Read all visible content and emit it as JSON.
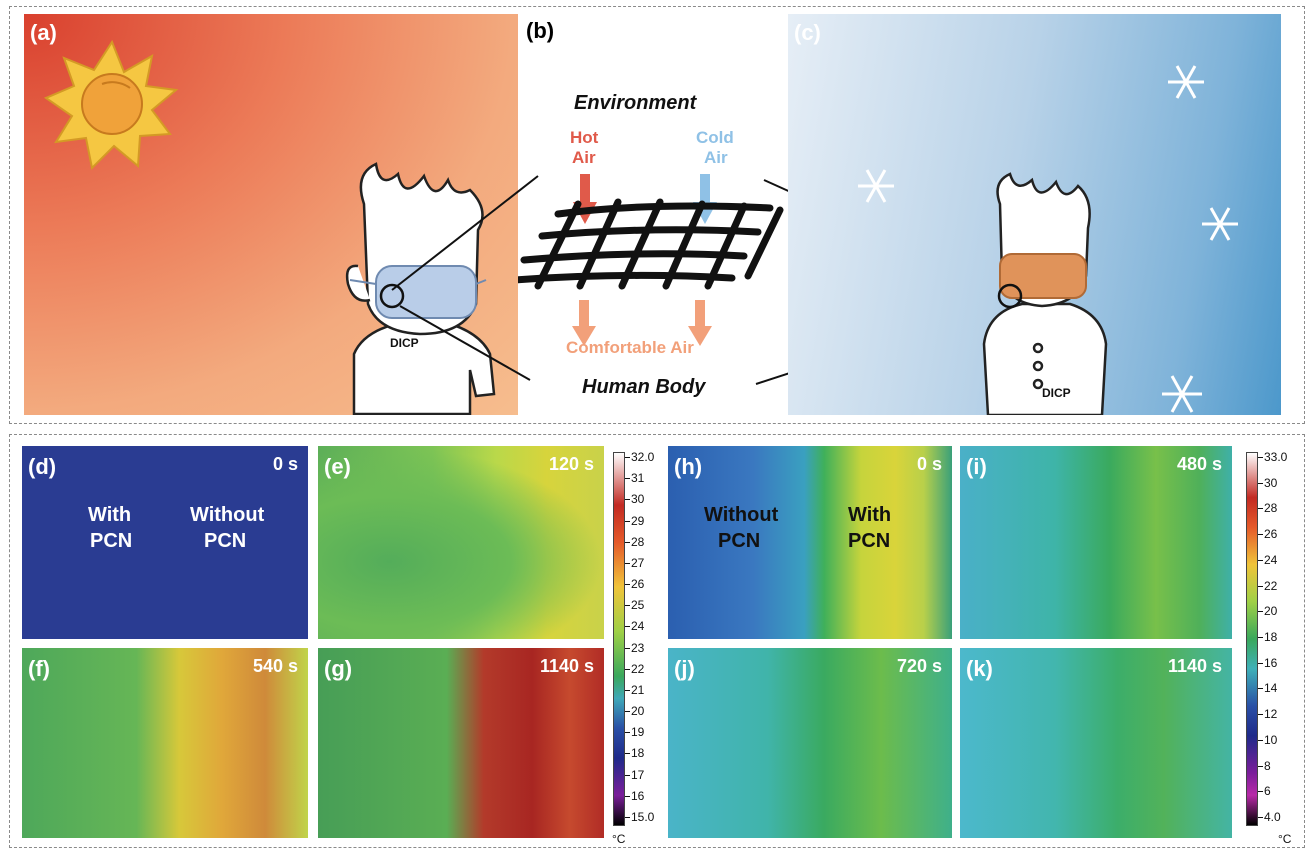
{
  "top": {
    "a": {
      "label": "(a)"
    },
    "b": {
      "label": "(b)",
      "environment": "Environment",
      "hot_air": [
        "Hot",
        "Air"
      ],
      "cold_air": [
        "Cold",
        "Air"
      ],
      "comfortable": "Comfortable Air",
      "human_body": "Human Body"
    },
    "c": {
      "label": "(c)"
    },
    "shirt_text": "DICP",
    "coat_text": "DICP"
  },
  "left_group": {
    "panels": [
      {
        "label": "(d)",
        "time": "0 s",
        "texts": [
          "With",
          "PCN",
          "Without",
          "PCN"
        ]
      },
      {
        "label": "(e)",
        "time": "120 s"
      },
      {
        "label": "(f)",
        "time": "540 s"
      },
      {
        "label": "(g)",
        "time": "1140 s"
      }
    ],
    "colorbar": {
      "ticks": [
        "32.0",
        "31",
        "30",
        "29",
        "28",
        "27",
        "26",
        "25",
        "24",
        "23",
        "22",
        "21",
        "20",
        "19",
        "18",
        "17",
        "16",
        "15.0"
      ],
      "unit": "°C"
    }
  },
  "right_group": {
    "panels": [
      {
        "label": "(h)",
        "time": "0 s",
        "texts": [
          "Without",
          "PCN",
          "With",
          "PCN"
        ]
      },
      {
        "label": "(i)",
        "time": "480 s"
      },
      {
        "label": "(j)",
        "time": "720 s"
      },
      {
        "label": "(k)",
        "time": "1140 s"
      }
    ],
    "colorbar": {
      "ticks": [
        "33.0",
        "30",
        "28",
        "26",
        "24",
        "22",
        "20",
        "18",
        "16",
        "14",
        "12",
        "10",
        "8",
        "6",
        "4.0"
      ],
      "unit": "°C"
    }
  },
  "colors": {
    "hot": "#e05a4a",
    "cold": "#8fc1e6",
    "comfortable": "#f2a07a"
  }
}
